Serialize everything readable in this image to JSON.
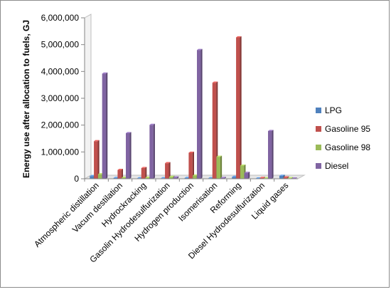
{
  "chart_data": {
    "type": "bar",
    "title": "",
    "xlabel": "",
    "ylabel": "Energy use after allocation to fuels, GJ",
    "ylim": [
      0,
      6000000
    ],
    "yticks": [
      "0",
      "1,000,000",
      "2,000,000",
      "3,000,000",
      "4,000,000",
      "5,000,000",
      "6,000,000"
    ],
    "grid": false,
    "style": "3d-clustered",
    "legend_position": "right",
    "categories": [
      "Atmospheric distillation",
      "Vacum destilation",
      "Hydrockracking",
      "Gasolin Hydrodesulfurization",
      "Hydrogen production",
      "Isomerisation",
      "Reforming",
      "Diesel Hydrodesulfurization",
      "Liquid gases"
    ],
    "series": [
      {
        "name": "LPG",
        "color": "#4f81bd",
        "values": [
          100000,
          30000,
          20000,
          20000,
          30000,
          20000,
          70000,
          10000,
          110000
        ]
      },
      {
        "name": "Gasoline 95",
        "color": "#c0504d",
        "values": [
          1400000,
          330000,
          400000,
          580000,
          970000,
          3580000,
          5270000,
          30000,
          50000
        ]
      },
      {
        "name": "Gasoline 98",
        "color": "#9bbb59",
        "values": [
          170000,
          40000,
          40000,
          70000,
          120000,
          820000,
          490000,
          20000,
          20000
        ]
      },
      {
        "name": "Diesel",
        "color": "#8064a2",
        "values": [
          3920000,
          1700000,
          2010000,
          50000,
          4800000,
          30000,
          220000,
          1780000,
          10000
        ]
      }
    ]
  }
}
